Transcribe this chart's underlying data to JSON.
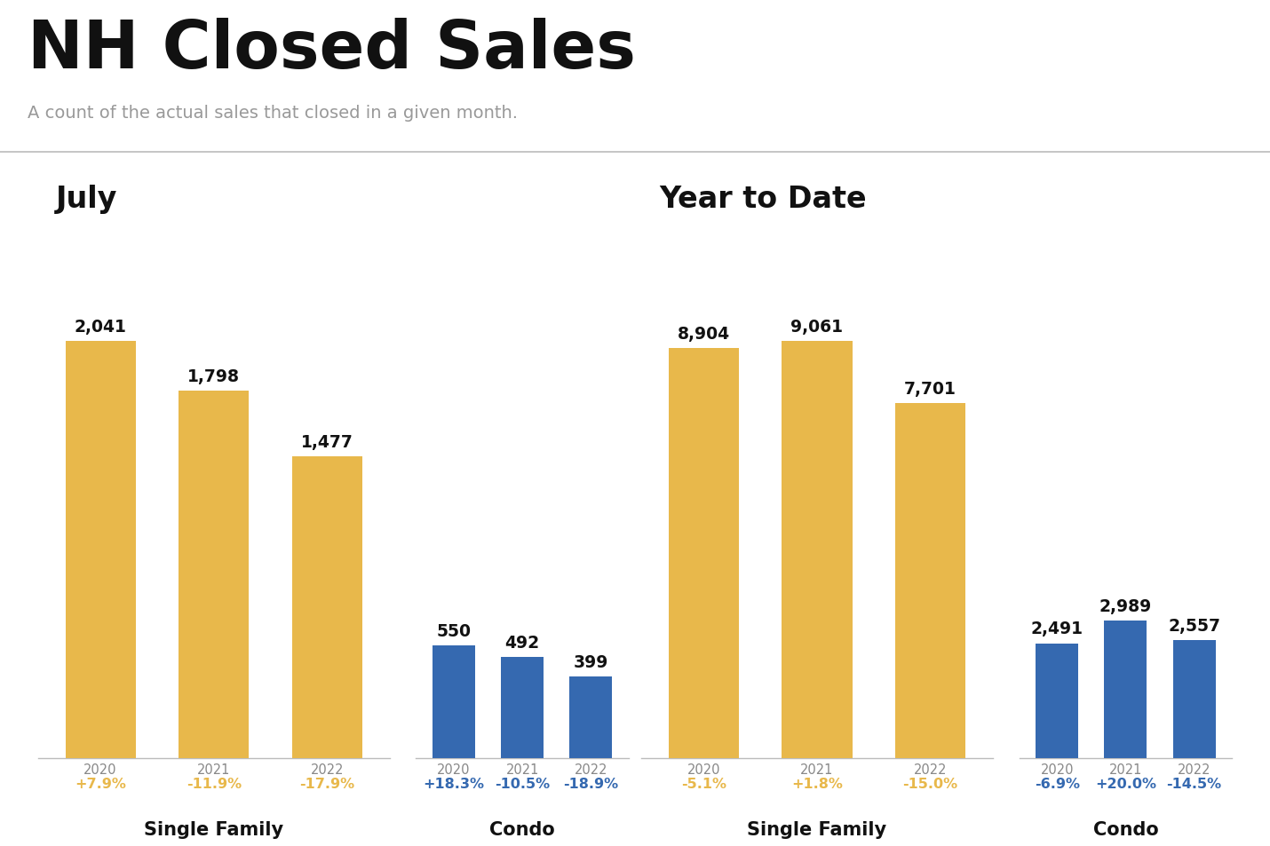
{
  "title": "NH Closed Sales",
  "subtitle": "A count of the actual sales that closed in a given month.",
  "background_color": "#ffffff",
  "gold_color": "#E8B84B",
  "blue_color": "#3569B0",
  "sections": [
    {
      "section_title": "July",
      "groups": [
        {
          "label": "Single Family",
          "color": "#E8B84B",
          "years": [
            "2020",
            "2021",
            "2022"
          ],
          "values": [
            2041,
            1798,
            1477
          ],
          "pct_changes": [
            "+7.9%",
            "-11.9%",
            "-17.9%"
          ],
          "pct_colors": [
            "#E8B84B",
            "#E8B84B",
            "#E8B84B"
          ]
        },
        {
          "label": "Condo",
          "color": "#3569B0",
          "years": [
            "2020",
            "2021",
            "2022"
          ],
          "values": [
            550,
            492,
            399
          ],
          "pct_changes": [
            "+18.3%",
            "-10.5%",
            "-18.9%"
          ],
          "pct_colors": [
            "#3569B0",
            "#3569B0",
            "#3569B0"
          ]
        }
      ],
      "section_max": 2041
    },
    {
      "section_title": "Year to Date",
      "groups": [
        {
          "label": "Single Family",
          "color": "#E8B84B",
          "years": [
            "2020",
            "2021",
            "2022"
          ],
          "values": [
            8904,
            9061,
            7701
          ],
          "pct_changes": [
            "-5.1%",
            "+1.8%",
            "-15.0%"
          ],
          "pct_colors": [
            "#E8B84B",
            "#E8B84B",
            "#E8B84B"
          ]
        },
        {
          "label": "Condo",
          "color": "#3569B0",
          "years": [
            "2020",
            "2021",
            "2022"
          ],
          "values": [
            2491,
            2989,
            2557
          ],
          "pct_changes": [
            "-6.9%",
            "+20.0%",
            "-14.5%"
          ],
          "pct_colors": [
            "#3569B0",
            "#3569B0",
            "#3569B0"
          ]
        }
      ],
      "section_max": 9061
    }
  ],
  "divider_color": "#bbbbbb",
  "tick_color": "#888888",
  "year_fontsize": 10.5,
  "pct_fontsize": 11.5,
  "value_fontsize": 13.5,
  "group_label_fontsize": 15,
  "section_title_fontsize": 24,
  "main_title_fontsize": 54,
  "subtitle_fontsize": 14
}
